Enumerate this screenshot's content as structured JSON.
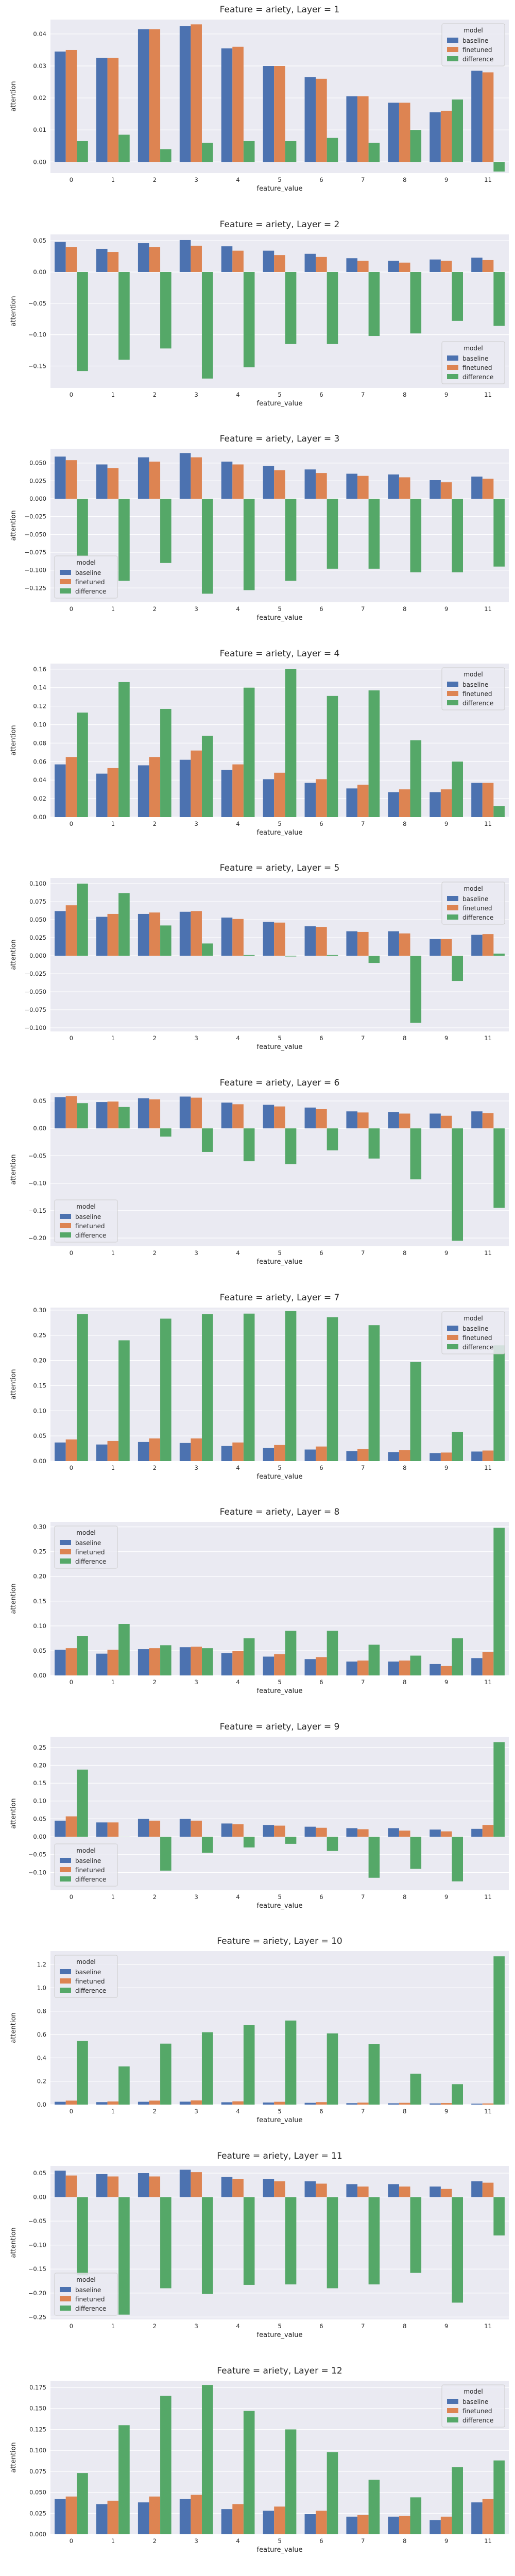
{
  "colors": {
    "plot_bg": "#eaeaf2",
    "grid": "#ffffff",
    "series": [
      "#4c72b0",
      "#dd8452",
      "#55a868"
    ]
  },
  "legend_title": "model",
  "chart_data": [
    {
      "type": "bar",
      "title": "Feature = ariety, Layer = 1",
      "xlabel": "feature_value",
      "ylabel": "attention",
      "categories": [
        "0",
        "1",
        "2",
        "3",
        "4",
        "5",
        "6",
        "7",
        "8",
        "9",
        "11"
      ],
      "ylim": [
        -0.0035,
        0.0445
      ],
      "yticks": [
        0.0,
        0.01,
        0.02,
        0.03,
        0.04
      ],
      "yticks_labels": [
        "0.00",
        "0.01",
        "0.02",
        "0.03",
        "0.04"
      ],
      "legend_position": "top-right",
      "series": [
        {
          "name": "baseline",
          "values": [
            0.0345,
            0.0325,
            0.0415,
            0.0425,
            0.0355,
            0.03,
            0.0265,
            0.0205,
            0.0185,
            0.0155,
            0.0285
          ]
        },
        {
          "name": "finetuned",
          "values": [
            0.035,
            0.0325,
            0.0415,
            0.043,
            0.036,
            0.03,
            0.026,
            0.0205,
            0.0185,
            0.016,
            0.028
          ]
        },
        {
          "name": "difference",
          "values": [
            0.0065,
            0.0085,
            0.004,
            0.006,
            0.0065,
            0.0065,
            0.0075,
            0.006,
            0.01,
            0.0195,
            -0.003
          ]
        }
      ]
    },
    {
      "type": "bar",
      "title": "Feature = ariety, Layer = 2",
      "xlabel": "feature_value",
      "ylabel": "attention",
      "categories": [
        "0",
        "1",
        "2",
        "3",
        "4",
        "5",
        "6",
        "7",
        "8",
        "9",
        "11"
      ],
      "ylim": [
        -0.185,
        0.06
      ],
      "yticks": [
        -0.15,
        -0.1,
        -0.05,
        0.0,
        0.05
      ],
      "yticks_labels": [
        "−0.15",
        "−0.10",
        "−0.05",
        "0.00",
        "0.05"
      ],
      "legend_position": "lower-right",
      "series": [
        {
          "name": "baseline",
          "values": [
            0.048,
            0.037,
            0.046,
            0.051,
            0.041,
            0.034,
            0.029,
            0.022,
            0.018,
            0.02,
            0.023
          ]
        },
        {
          "name": "finetuned",
          "values": [
            0.04,
            0.032,
            0.04,
            0.042,
            0.034,
            0.027,
            0.024,
            0.018,
            0.015,
            0.018,
            0.019
          ]
        },
        {
          "name": "difference",
          "values": [
            -0.158,
            -0.14,
            -0.122,
            -0.17,
            -0.152,
            -0.115,
            -0.115,
            -0.102,
            -0.098,
            -0.078,
            -0.086
          ]
        }
      ]
    },
    {
      "type": "bar",
      "title": "Feature = ariety, Layer = 3",
      "xlabel": "feature_value",
      "ylabel": "attention",
      "categories": [
        "0",
        "1",
        "2",
        "3",
        "4",
        "5",
        "6",
        "7",
        "8",
        "9",
        "11"
      ],
      "ylim": [
        -0.145,
        0.07
      ],
      "yticks": [
        -0.125,
        -0.1,
        -0.075,
        -0.05,
        -0.025,
        0.0,
        0.025,
        0.05
      ],
      "yticks_labels": [
        "−0.125",
        "−0.100",
        "−0.075",
        "−0.050",
        "−0.025",
        "0.000",
        "0.025",
        "0.050"
      ],
      "legend_position": "lower-left",
      "series": [
        {
          "name": "baseline",
          "values": [
            0.059,
            0.048,
            0.058,
            0.064,
            0.052,
            0.046,
            0.041,
            0.035,
            0.034,
            0.026,
            0.031
          ]
        },
        {
          "name": "finetuned",
          "values": [
            0.054,
            0.043,
            0.052,
            0.058,
            0.048,
            0.04,
            0.036,
            0.032,
            0.03,
            0.023,
            0.028
          ]
        },
        {
          "name": "difference",
          "values": [
            -0.08,
            -0.115,
            -0.09,
            -0.133,
            -0.128,
            -0.115,
            -0.098,
            -0.098,
            -0.103,
            -0.103,
            -0.095
          ]
        }
      ]
    },
    {
      "type": "bar",
      "title": "Feature = ariety, Layer = 4",
      "xlabel": "feature_value",
      "ylabel": "attention",
      "categories": [
        "0",
        "1",
        "2",
        "3",
        "4",
        "5",
        "6",
        "7",
        "8",
        "9",
        "11"
      ],
      "ylim": [
        0.0,
        0.166
      ],
      "yticks": [
        0.0,
        0.02,
        0.04,
        0.06,
        0.08,
        0.1,
        0.12,
        0.14,
        0.16
      ],
      "yticks_labels": [
        "0.00",
        "0.02",
        "0.04",
        "0.06",
        "0.08",
        "0.10",
        "0.12",
        "0.14",
        "0.16"
      ],
      "legend_position": "top-right",
      "series": [
        {
          "name": "baseline",
          "values": [
            0.057,
            0.047,
            0.056,
            0.062,
            0.051,
            0.041,
            0.037,
            0.031,
            0.027,
            0.027,
            0.037
          ]
        },
        {
          "name": "finetuned",
          "values": [
            0.065,
            0.053,
            0.065,
            0.072,
            0.057,
            0.048,
            0.041,
            0.035,
            0.03,
            0.03,
            0.037
          ]
        },
        {
          "name": "difference",
          "values": [
            0.113,
            0.146,
            0.117,
            0.088,
            0.14,
            0.16,
            0.131,
            0.137,
            0.083,
            0.06,
            0.012
          ]
        }
      ]
    },
    {
      "type": "bar",
      "title": "Feature = ariety, Layer = 5",
      "xlabel": "feature_value",
      "ylabel": "attention",
      "categories": [
        "0",
        "1",
        "2",
        "3",
        "4",
        "5",
        "6",
        "7",
        "8",
        "9",
        "11"
      ],
      "ylim": [
        -0.105,
        0.108
      ],
      "yticks": [
        -0.1,
        -0.075,
        -0.05,
        -0.025,
        0.0,
        0.025,
        0.05,
        0.075,
        0.1
      ],
      "yticks_labels": [
        "−0.100",
        "−0.075",
        "−0.050",
        "−0.025",
        "0.000",
        "0.025",
        "0.050",
        "0.075",
        "0.100"
      ],
      "legend_position": "top-right",
      "series": [
        {
          "name": "baseline",
          "values": [
            0.062,
            0.054,
            0.058,
            0.061,
            0.053,
            0.047,
            0.041,
            0.034,
            0.034,
            0.023,
            0.029
          ]
        },
        {
          "name": "finetuned",
          "values": [
            0.07,
            0.058,
            0.06,
            0.062,
            0.051,
            0.046,
            0.04,
            0.033,
            0.031,
            0.023,
            0.03
          ]
        },
        {
          "name": "difference",
          "values": [
            0.1,
            0.087,
            0.042,
            0.017,
            0.001,
            -0.001,
            0.001,
            -0.01,
            -0.093,
            -0.035,
            0.003
          ]
        }
      ]
    },
    {
      "type": "bar",
      "title": "Feature = ariety, Layer = 6",
      "xlabel": "feature_value",
      "ylabel": "attention",
      "categories": [
        "0",
        "1",
        "2",
        "3",
        "4",
        "5",
        "6",
        "7",
        "8",
        "9",
        "11"
      ],
      "ylim": [
        -0.215,
        0.065
      ],
      "yticks": [
        -0.2,
        -0.15,
        -0.1,
        -0.05,
        0.0,
        0.05
      ],
      "yticks_labels": [
        "−0.20",
        "−0.15",
        "−0.10",
        "−0.05",
        "0.00",
        "0.05"
      ],
      "legend_position": "lower-left",
      "series": [
        {
          "name": "baseline",
          "values": [
            0.057,
            0.048,
            0.055,
            0.058,
            0.047,
            0.043,
            0.038,
            0.031,
            0.03,
            0.027,
            0.031
          ]
        },
        {
          "name": "finetuned",
          "values": [
            0.059,
            0.049,
            0.053,
            0.056,
            0.044,
            0.04,
            0.035,
            0.029,
            0.027,
            0.023,
            0.028
          ]
        },
        {
          "name": "difference",
          "values": [
            0.046,
            0.039,
            -0.015,
            -0.043,
            -0.06,
            -0.065,
            -0.04,
            -0.055,
            -0.093,
            -0.205,
            -0.145
          ]
        }
      ]
    },
    {
      "type": "bar",
      "title": "Feature = ariety, Layer = 7",
      "xlabel": "feature_value",
      "ylabel": "attention",
      "categories": [
        "0",
        "1",
        "2",
        "3",
        "4",
        "5",
        "6",
        "7",
        "8",
        "9",
        "11"
      ],
      "ylim": [
        0.0,
        0.305
      ],
      "yticks": [
        0.0,
        0.05,
        0.1,
        0.15,
        0.2,
        0.25,
        0.3
      ],
      "yticks_labels": [
        "0.00",
        "0.05",
        "0.10",
        "0.15",
        "0.20",
        "0.25",
        "0.30"
      ],
      "legend_position": "top-right",
      "series": [
        {
          "name": "baseline",
          "values": [
            0.037,
            0.033,
            0.038,
            0.036,
            0.03,
            0.026,
            0.023,
            0.02,
            0.018,
            0.016,
            0.019
          ]
        },
        {
          "name": "finetuned",
          "values": [
            0.043,
            0.04,
            0.045,
            0.045,
            0.037,
            0.032,
            0.029,
            0.024,
            0.022,
            0.017,
            0.021
          ]
        },
        {
          "name": "difference",
          "values": [
            0.292,
            0.24,
            0.283,
            0.292,
            0.293,
            0.298,
            0.286,
            0.27,
            0.197,
            0.058,
            0.23
          ]
        }
      ]
    },
    {
      "type": "bar",
      "title": "Feature = ariety, Layer = 8",
      "xlabel": "feature_value",
      "ylabel": "attention",
      "categories": [
        "0",
        "1",
        "2",
        "3",
        "4",
        "5",
        "6",
        "7",
        "8",
        "9",
        "11"
      ],
      "ylim": [
        0.0,
        0.31
      ],
      "yticks": [
        0.0,
        0.05,
        0.1,
        0.15,
        0.2,
        0.25,
        0.3
      ],
      "yticks_labels": [
        "0.00",
        "0.05",
        "0.10",
        "0.15",
        "0.20",
        "0.25",
        "0.30"
      ],
      "legend_position": "top-left",
      "series": [
        {
          "name": "baseline",
          "values": [
            0.052,
            0.044,
            0.053,
            0.057,
            0.045,
            0.038,
            0.033,
            0.028,
            0.028,
            0.023,
            0.035
          ]
        },
        {
          "name": "finetuned",
          "values": [
            0.055,
            0.052,
            0.055,
            0.058,
            0.049,
            0.043,
            0.037,
            0.03,
            0.03,
            0.019,
            0.047
          ]
        },
        {
          "name": "difference",
          "values": [
            0.08,
            0.104,
            0.061,
            0.055,
            0.075,
            0.09,
            0.09,
            0.062,
            0.04,
            0.075,
            0.298
          ]
        }
      ]
    },
    {
      "type": "bar",
      "title": "Feature = ariety, Layer = 9",
      "xlabel": "feature_value",
      "ylabel": "attention",
      "categories": [
        "0",
        "1",
        "2",
        "3",
        "4",
        "5",
        "6",
        "7",
        "8",
        "9",
        "11"
      ],
      "ylim": [
        -0.15,
        0.28
      ],
      "yticks": [
        -0.1,
        -0.05,
        0.0,
        0.05,
        0.1,
        0.15,
        0.2,
        0.25
      ],
      "yticks_labels": [
        "−0.10",
        "−0.05",
        "0.00",
        "0.05",
        "0.10",
        "0.15",
        "0.20",
        "0.25"
      ],
      "legend_position": "lower-left",
      "series": [
        {
          "name": "baseline",
          "values": [
            0.045,
            0.04,
            0.05,
            0.05,
            0.037,
            0.033,
            0.028,
            0.024,
            0.024,
            0.02,
            0.022
          ]
        },
        {
          "name": "finetuned",
          "values": [
            0.057,
            0.04,
            0.045,
            0.045,
            0.035,
            0.031,
            0.025,
            0.021,
            0.017,
            0.015,
            0.033
          ]
        },
        {
          "name": "difference",
          "values": [
            0.188,
            0.0,
            -0.095,
            -0.045,
            -0.03,
            -0.02,
            -0.04,
            -0.115,
            -0.09,
            -0.125,
            0.265
          ]
        }
      ]
    },
    {
      "type": "bar",
      "title": "Feature = ariety, Layer = 10",
      "xlabel": "feature_value",
      "ylabel": "attention",
      "categories": [
        "0",
        "1",
        "2",
        "3",
        "4",
        "5",
        "6",
        "7",
        "8",
        "9",
        "11"
      ],
      "ylim": [
        0.0,
        1.315
      ],
      "yticks": [
        0.0,
        0.2,
        0.4,
        0.6,
        0.8,
        1.0,
        1.2
      ],
      "yticks_labels": [
        "0.0",
        "0.2",
        "0.4",
        "0.6",
        "0.8",
        "1.0",
        "1.2"
      ],
      "legend_position": "top-left",
      "series": [
        {
          "name": "baseline",
          "values": [
            0.024,
            0.021,
            0.024,
            0.025,
            0.02,
            0.018,
            0.015,
            0.012,
            0.011,
            0.01,
            0.008
          ]
        },
        {
          "name": "finetuned",
          "values": [
            0.034,
            0.027,
            0.034,
            0.036,
            0.028,
            0.024,
            0.021,
            0.017,
            0.015,
            0.013,
            0.01
          ]
        },
        {
          "name": "difference",
          "values": [
            0.545,
            0.327,
            0.522,
            0.62,
            0.68,
            0.72,
            0.61,
            0.52,
            0.265,
            0.175,
            1.27
          ]
        }
      ]
    },
    {
      "type": "bar",
      "title": "Feature = ariety, Layer = 11",
      "xlabel": "feature_value",
      "ylabel": "attention",
      "categories": [
        "0",
        "1",
        "2",
        "3",
        "4",
        "5",
        "6",
        "7",
        "8",
        "9",
        "11"
      ],
      "ylim": [
        -0.255,
        0.065
      ],
      "yticks": [
        -0.25,
        -0.2,
        -0.15,
        -0.1,
        -0.05,
        0.0,
        0.05
      ],
      "yticks_labels": [
        "−0.25",
        "−0.20",
        "−0.15",
        "−0.10",
        "−0.05",
        "0.00",
        "0.05"
      ],
      "legend_position": "lower-left",
      "series": [
        {
          "name": "baseline",
          "values": [
            0.055,
            0.048,
            0.05,
            0.057,
            0.042,
            0.038,
            0.033,
            0.027,
            0.027,
            0.022,
            0.033
          ]
        },
        {
          "name": "finetuned",
          "values": [
            0.045,
            0.043,
            0.043,
            0.052,
            0.038,
            0.033,
            0.028,
            0.022,
            0.022,
            0.017,
            0.03
          ]
        },
        {
          "name": "difference",
          "values": [
            -0.163,
            -0.245,
            -0.19,
            -0.202,
            -0.183,
            -0.182,
            -0.19,
            -0.182,
            -0.158,
            -0.22,
            -0.08
          ]
        }
      ]
    },
    {
      "type": "bar",
      "title": "Feature = ariety, Layer = 12",
      "xlabel": "feature_value",
      "ylabel": "attention",
      "categories": [
        "0",
        "1",
        "2",
        "3",
        "4",
        "5",
        "6",
        "7",
        "8",
        "9",
        "11"
      ],
      "ylim": [
        0.0,
        0.183
      ],
      "yticks": [
        0.0,
        0.025,
        0.05,
        0.075,
        0.1,
        0.125,
        0.15,
        0.175
      ],
      "yticks_labels": [
        "0.000",
        "0.025",
        "0.050",
        "0.075",
        "0.100",
        "0.125",
        "0.150",
        "0.175"
      ],
      "legend_position": "top-right",
      "series": [
        {
          "name": "baseline",
          "values": [
            0.042,
            0.036,
            0.038,
            0.042,
            0.03,
            0.028,
            0.024,
            0.021,
            0.021,
            0.017,
            0.038
          ]
        },
        {
          "name": "finetuned",
          "values": [
            0.045,
            0.04,
            0.045,
            0.047,
            0.036,
            0.033,
            0.028,
            0.023,
            0.022,
            0.021,
            0.042
          ]
        },
        {
          "name": "difference",
          "values": [
            0.073,
            0.13,
            0.165,
            0.178,
            0.147,
            0.125,
            0.098,
            0.065,
            0.044,
            0.08,
            0.088
          ]
        }
      ]
    }
  ]
}
